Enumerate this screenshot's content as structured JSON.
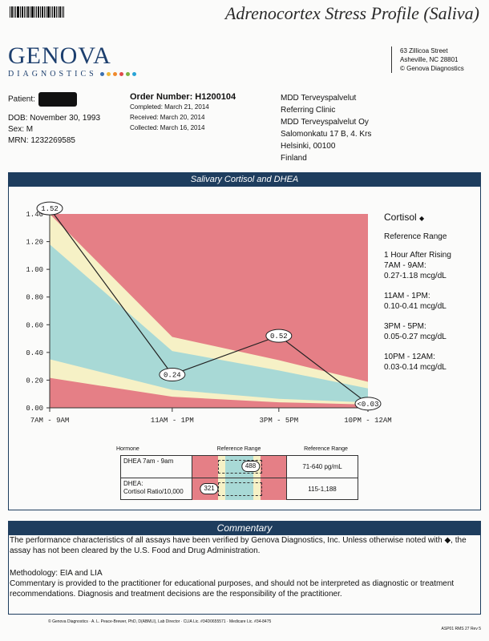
{
  "header": {
    "title": "Adrenocortex Stress Profile (Saliva)",
    "logo_main": "GENOVA",
    "logo_sub": "DIAGNOSTICS",
    "logo_dot_colors": [
      "#3a6fb0",
      "#f0b93a",
      "#f08a2c",
      "#e04a4a",
      "#7cb342",
      "#29a3d6"
    ],
    "address": [
      "63 Zillicoa Street",
      "Asheville, NC  28801",
      "© Genova Diagnostics"
    ]
  },
  "patient": {
    "label": "Patient:",
    "dob": "DOB: November 30, 1993",
    "sex": "Sex: M",
    "mrn": "MRN: 1232269585"
  },
  "order": {
    "number": "Order Number: H1200104",
    "completed": "Completed: March 21, 2014",
    "received": "Received: March 20, 2014",
    "collected": "Collected: March 16, 2014"
  },
  "clinic": [
    "MDD Terveyspalvelut",
    "Referring Clinic",
    "MDD Terveyspalvelut Oy",
    "Salomonkatu 17 B, 4. Krs",
    "Helsinki,   00100",
    "Finland"
  ],
  "section_title": "Salivary Cortisol and DHEA",
  "legend": {
    "title": "Cortisol",
    "title_mark": "◆",
    "subtitle": "Reference Range",
    "periods": [
      {
        "label1": "1 Hour After Rising",
        "label2": "7AM - 9AM:",
        "range": "0.27-1.18 mcg/dL"
      },
      {
        "label1": "",
        "label2": "11AM - 1PM:",
        "range": "0.10-0.41 mcg/dL"
      },
      {
        "label1": "",
        "label2": "3PM - 5PM:",
        "range": "0.05-0.27 mcg/dL"
      },
      {
        "label1": "",
        "label2": "10PM - 12AM:",
        "range": "0.03-0.14 mcg/dL"
      }
    ]
  },
  "chart_data": {
    "type": "line",
    "categories": [
      "7AM - 9AM",
      "11AM - 1PM",
      "3PM - 5PM",
      "10PM - 12AM"
    ],
    "series": [
      {
        "values": [
          1.52,
          0.24,
          0.52,
          0.03
        ]
      }
    ],
    "data_labels": [
      "1.52",
      "0.24",
      "0.52",
      "<0.03"
    ],
    "ylim": [
      0,
      1.4
    ],
    "yticks": [
      "0.00",
      "0.20",
      "0.40",
      "0.60",
      "0.80",
      "1.00",
      "1.20",
      "1.40"
    ],
    "ref_low": [
      0.27,
      0.1,
      0.05,
      0.03
    ],
    "ref_high": [
      1.18,
      0.41,
      0.27,
      0.14
    ],
    "colors": {
      "high": "#e57f86",
      "mid": "#f6f1c6",
      "ref": "#a8d9d6",
      "line": "#222222"
    }
  },
  "hormone_table": {
    "headers": {
      "hormone": "Hormone",
      "ref_range": "Reference Range",
      "ref_values": "Reference Range"
    },
    "rows": [
      {
        "name": "DHEA 7am - 9am",
        "value": "488",
        "range": "71-640 pg/mL",
        "fraction": 0.62
      },
      {
        "name": "DHEA:\nCortisol Ratio/10,000",
        "value": "321",
        "range": "115-1,188",
        "fraction": 0.18
      }
    ]
  },
  "commentary": {
    "title": "Commentary",
    "p1": "The performance characteristics of all assays have been verified by Genova Diagnostics, Inc.   Unless otherwise noted with ◆, the assay has not been cleared by the U.S. Food and Drug Administration.",
    "p2": "Methodology: EIA and LIA",
    "p3": "Commentary is provided to the practitioner for educational purposes, and should not be interpreted as diagnostic or treatment recommendations. Diagnosis and treatment decisions are the responsibility of the practitioner."
  },
  "footer": {
    "left": "© Genova Diagnostics · A. L. Peace-Brewer, PhD, D(ABMLI), Lab Director · CLIA Lic. #34D0655571 · Medicare Lic. #34-8475",
    "right": "ASP01 RMS 27 Rev 5"
  }
}
